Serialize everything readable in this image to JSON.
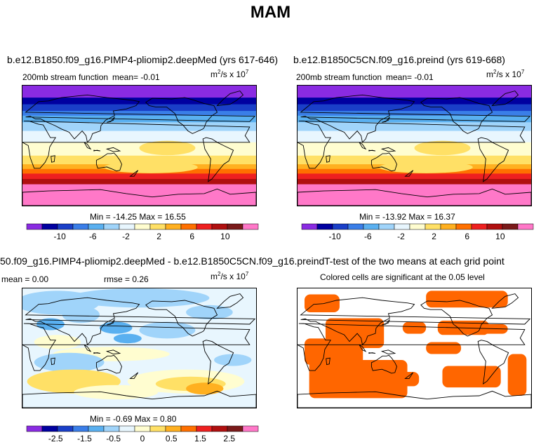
{
  "page": {
    "title": "MAM"
  },
  "colors": {
    "ref_palette": [
      "#8a2be2",
      "#0000a0",
      "#1a3fc8",
      "#3a7ee8",
      "#5ab0f0",
      "#a0d4fa",
      "#e8f6fe",
      "#fffdd0",
      "#ffe066",
      "#ffb020",
      "#ff7000",
      "#ee2020",
      "#b01010",
      "#7a1a1a",
      "#ff78c8"
    ],
    "diff_palette": [
      "#8a2be2",
      "#0000a0",
      "#1a3fc8",
      "#3a7ee8",
      "#5ab0f0",
      "#a0d4fa",
      "#e8f6fe",
      "#fffdd0",
      "#ffe066",
      "#ffb020",
      "#ff7000",
      "#ee2020",
      "#b01010",
      "#7a1a1a",
      "#ff78c8"
    ],
    "ttest_fill": "#ff6600",
    "land_outline": "#000000"
  },
  "chart_data": [
    {
      "type": "heatmap",
      "id": "test-case",
      "title": "b.e12.B1850.f09_g16.PIMP4-pliomip2.deepMed (yrs 617-646)",
      "left_label": "200mb stream function",
      "mean_text": "mean=   -0.01",
      "units": "m",
      "units_exp": "2",
      "units_mid": "/s x 10",
      "units_pow": "7",
      "min_max": "Min = -14.25 Max =  16.55",
      "min": -14.25,
      "max": 16.55,
      "mean": -0.01,
      "lat_bands": [
        -13.5,
        -12.5,
        -11.5,
        -7.5,
        -4.5,
        -1,
        1.5,
        4,
        6,
        9,
        11.5,
        14,
        15.5,
        16
      ]
    },
    {
      "type": "heatmap",
      "id": "control-case",
      "title": "b.e12.B1850C5CN.f09_g16.preind (yrs 619-668)",
      "left_label": "200mb stream function",
      "mean_text": "mean=   -0.01",
      "units": "m",
      "units_exp": "2",
      "units_mid": "/s x 10",
      "units_pow": "7",
      "min_max": "Min = -13.92 Max =  16.37",
      "min": -13.92,
      "max": 16.37,
      "mean": -0.01,
      "lat_bands": [
        -13.5,
        -12.5,
        -11.5,
        -7.5,
        -4.5,
        -1,
        1.5,
        4,
        6,
        9,
        11.5,
        14,
        15.5,
        16
      ]
    },
    {
      "type": "heatmap",
      "id": "difference",
      "title": "50.f09_g16.PIMP4-pliomip2.deepMed - b.e12.B1850C5CN.f09_g16.preind",
      "mean_text": "mean =   0.00",
      "rmse_text": "rmse =   0.26",
      "units": "m",
      "units_exp": "2",
      "units_mid": "/s x 10",
      "units_pow": "7",
      "min_max": "Min = -0.69 Max =  0.80",
      "min": -0.69,
      "max": 0.8,
      "mean": 0.0,
      "rmse": 0.26
    },
    {
      "type": "heatmap",
      "id": "t-test",
      "title": "T-test of the two means at each grid point",
      "subtitle": "Colored cells are significant at the 0.05 level",
      "significance_level": 0.05
    }
  ],
  "colorbars": {
    "ref": {
      "ticks": [
        "-10",
        "-6",
        "-2",
        "2",
        "6",
        "10"
      ]
    },
    "diff": {
      "ticks": [
        "-2.5",
        "-1.5",
        "-0.5",
        "0",
        "0.5",
        "1.5",
        "2.5"
      ]
    }
  }
}
